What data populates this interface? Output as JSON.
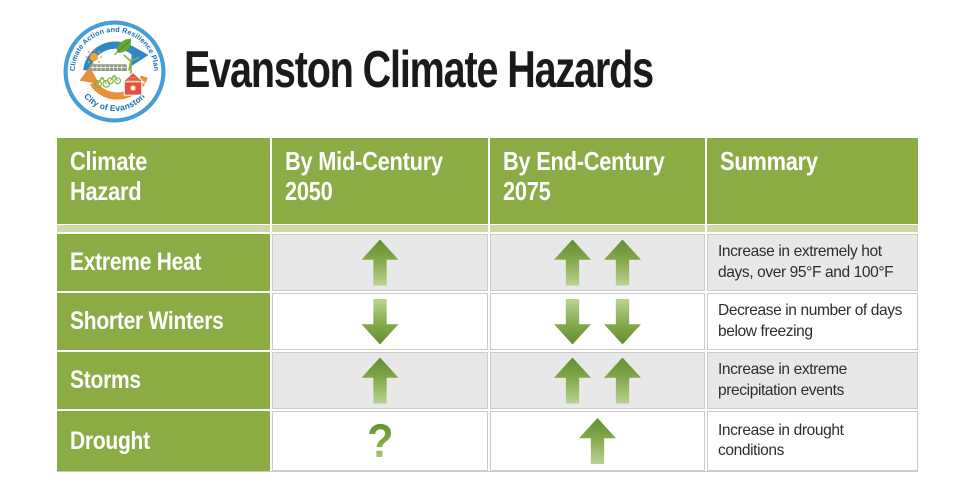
{
  "title": "Evanston Climate Hazards",
  "logo": {
    "arc_text_top": "Climate Action and Resilience Plan",
    "arc_text_bottom": "City of Evanston"
  },
  "table": {
    "columns": [
      {
        "id": "climate-hazard",
        "label": "Climate\nHazard"
      },
      {
        "id": "mid-century",
        "label": "By Mid-Century\n2050"
      },
      {
        "id": "end-century",
        "label": "By End-Century\n2075"
      },
      {
        "id": "summary",
        "label": "Summary"
      }
    ],
    "rows": [
      {
        "id": "extreme-heat",
        "hazard": "Extreme Heat",
        "mid_century": [
          "up"
        ],
        "end_century": [
          "up",
          "up"
        ],
        "summary": "Increase in extremely hot days, over 95°F and 100°F"
      },
      {
        "id": "shorter-winters",
        "hazard": "Shorter Winters",
        "mid_century": [
          "down"
        ],
        "end_century": [
          "down",
          "down"
        ],
        "summary": "Decrease in number of days below freezing"
      },
      {
        "id": "storms",
        "hazard": "Storms",
        "mid_century": [
          "up"
        ],
        "end_century": [
          "up",
          "up"
        ],
        "summary": "Increase in extreme precipitation events"
      },
      {
        "id": "drought",
        "hazard": "Drought",
        "mid_century": [
          "question"
        ],
        "end_century": [
          "up"
        ],
        "summary": "Increase in drought conditions"
      }
    ]
  },
  "glyphs": {
    "question_mark": "?"
  },
  "chart_data": {
    "type": "table",
    "title": "Evanston Climate Hazards",
    "columns": [
      "Climate Hazard",
      "By Mid-Century 2050",
      "By End-Century 2075",
      "Summary"
    ],
    "rows": [
      [
        "Extreme Heat",
        "increase (1 up arrow)",
        "large increase (2 up arrows)",
        "Increase in extremely hot days, over 95°F and 100°F"
      ],
      [
        "Shorter Winters",
        "decrease (1 down arrow)",
        "large decrease (2 down arrows)",
        "Decrease in number of days below freezing"
      ],
      [
        "Storms",
        "increase (1 up arrow)",
        "large increase (2 up arrows)",
        "Increase in extreme precipitation events"
      ],
      [
        "Drought",
        "uncertain (?)",
        "increase (1 up arrow)",
        "Increase in drought conditions"
      ]
    ]
  },
  "colors": {
    "green": "#8bac44",
    "pale_green": "#cfd9a6",
    "cell_gray": "#e8e8e8",
    "border_gray": "#cbcbcb",
    "arrow_dark": "#618e32",
    "arrow_mid": "#84a94a",
    "arrow_light": "#bad394",
    "summary_text": "#2d2d2d",
    "title_text": "#1a1a1a",
    "logo_ring_blue": "#469ed6",
    "logo_text_blue": "#1a6fb0",
    "logo_arrow_blue": "#2f88c6",
    "logo_arrow_orange": "#e8913b",
    "logo_house_red": "#dd5244",
    "logo_sun_orange": "#f6a02d",
    "logo_leaf_green": "#66a833"
  }
}
